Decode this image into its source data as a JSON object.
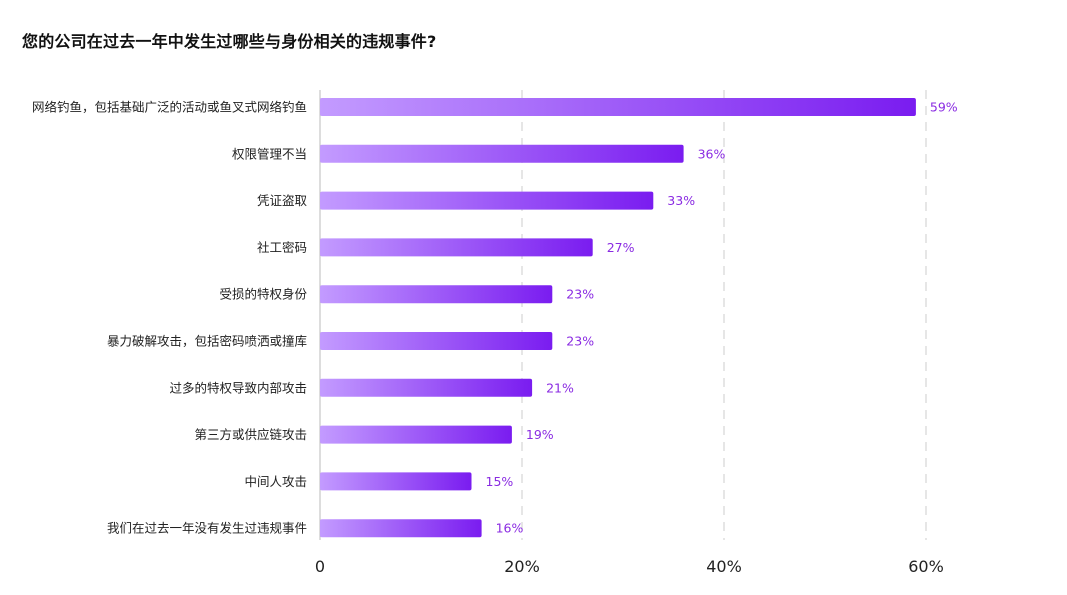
{
  "chart_data": {
    "type": "bar",
    "orientation": "horizontal",
    "title": "您的公司在过去一年中发生过哪些与身份相关的违规事件?",
    "categories": [
      "网络钓鱼，包括基础广泛的活动或鱼叉式网络钓鱼",
      "权限管理不当",
      "凭证盗取",
      "社工密码",
      "受损的特权身份",
      "暴力破解攻击，包括密码喷洒或撞库",
      "过多的特权导致内部攻击",
      "第三方或供应链攻击",
      "中间人攻击",
      "我们在过去一年没有发生过违规事件"
    ],
    "values": [
      59,
      36,
      33,
      27,
      23,
      23,
      21,
      19,
      15,
      16
    ],
    "value_labels": [
      "59%",
      "36%",
      "33%",
      "27%",
      "23%",
      "23%",
      "21%",
      "19%",
      "15%",
      "16%"
    ],
    "x_ticks": [
      0,
      20,
      40,
      60
    ],
    "x_tick_labels": [
      "0",
      "20%",
      "40%",
      "60%"
    ],
    "xlim": [
      0,
      60
    ],
    "grid": "vertical dashed",
    "colors": {
      "bar_start": "#c39bff",
      "bar_end": "#7a1cf0",
      "value_label": "#8a2be2",
      "grid": "#d5d5d5",
      "axis": "#bbbbbb"
    }
  }
}
